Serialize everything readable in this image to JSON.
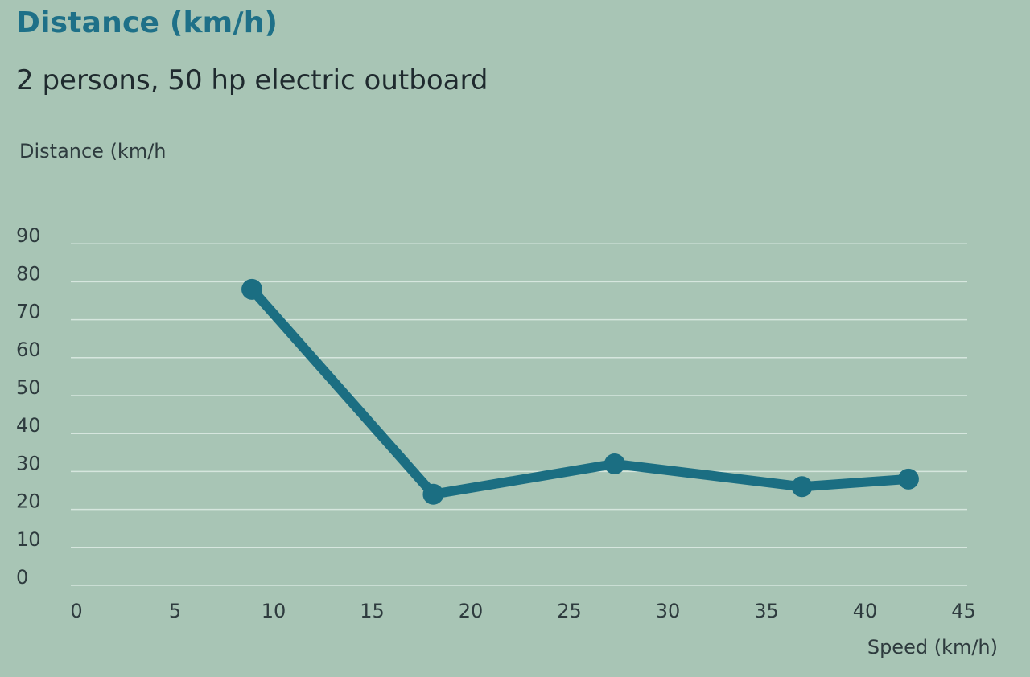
{
  "page": {
    "title": "Distance (km/h)",
    "subtitle": "2 persons, 50 hp electric outboard"
  },
  "colors": {
    "background": "#a8c5b5",
    "title": "#1e7088",
    "series": "#1b6e82",
    "gridline": "#d6e6de",
    "text": "#2e3b3e"
  },
  "chart_data": {
    "type": "line",
    "title": "Distance (km/h)",
    "subtitle": "2 persons, 50 hp electric outboard",
    "xlabel": "Speed (km/h)",
    "ylabel": "Distance (km/h",
    "xlim": [
      0,
      45
    ],
    "ylim": [
      0,
      90
    ],
    "xticks": [
      0,
      5,
      10,
      15,
      20,
      25,
      30,
      35,
      40,
      45
    ],
    "yticks": [
      0,
      10,
      20,
      30,
      40,
      50,
      60,
      70,
      80,
      90
    ],
    "grid": true,
    "legend": "none",
    "series": [
      {
        "x": [
          8.9,
          18.1,
          27.3,
          36.8,
          42.2
        ],
        "y": [
          78,
          24,
          32,
          26,
          28
        ]
      }
    ]
  }
}
